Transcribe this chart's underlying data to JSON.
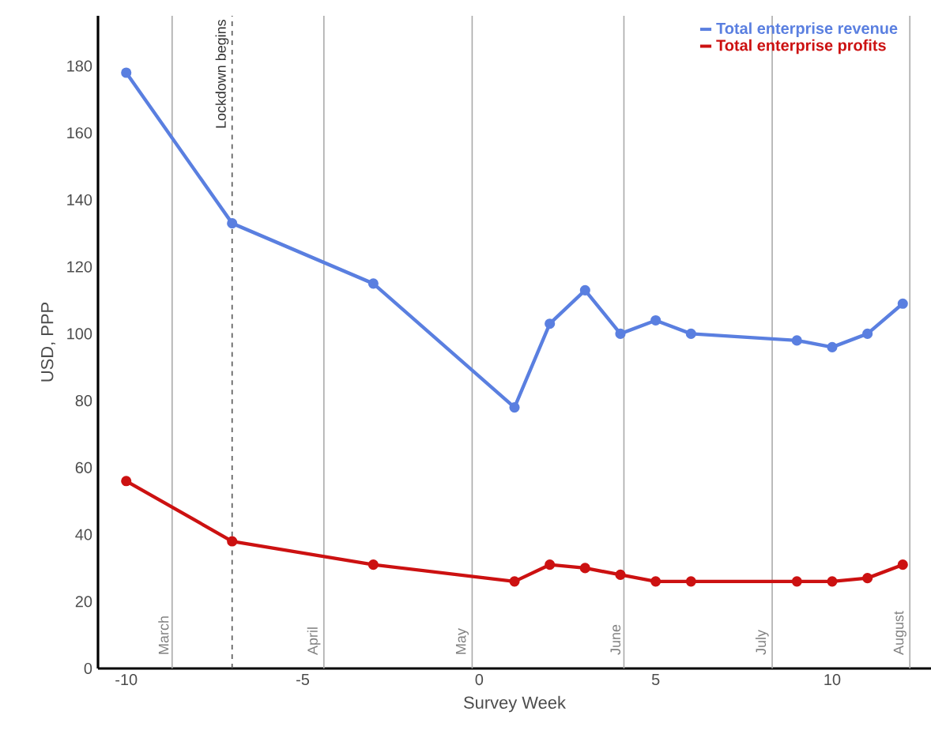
{
  "chart_data": {
    "type": "line",
    "xlabel": "Survey Week",
    "ylabel": "USD, PPP",
    "x": [
      -10,
      -7,
      -3,
      1,
      2,
      3,
      4,
      5,
      6,
      9,
      10,
      11,
      12
    ],
    "series": [
      {
        "name": "Total enterprise revenue",
        "color": "#5a7fe0",
        "values": [
          178,
          133,
          115,
          78,
          103,
          113,
          100,
          104,
          100,
          98,
          96,
          100,
          109
        ]
      },
      {
        "name": "Total enterprise profits",
        "color": "#cc1111",
        "values": [
          56,
          38,
          31,
          26,
          31,
          30,
          28,
          26,
          26,
          26,
          26,
          27,
          31
        ]
      }
    ],
    "xlim": [
      -10.8,
      12.8
    ],
    "xticks": [
      -10,
      -5,
      0,
      5,
      10
    ],
    "ylim": [
      0,
      195
    ],
    "yticks": [
      0,
      20,
      40,
      60,
      80,
      100,
      120,
      140,
      160,
      180
    ],
    "ref_lines": [
      {
        "axis": "x",
        "value": -8.7,
        "label": "March",
        "color": "#aaaaaa",
        "line_style": "solid"
      },
      {
        "axis": "x",
        "value": -7,
        "label": "Lockdown begins",
        "color": "#555555",
        "line_style": "dashed"
      },
      {
        "axis": "x",
        "value": -4.4,
        "label": "April",
        "color": "#aaaaaa",
        "line_style": "solid"
      },
      {
        "axis": "x",
        "value": -0.2,
        "label": "May",
        "color": "#aaaaaa",
        "line_style": "solid"
      },
      {
        "axis": "x",
        "value": 4.1,
        "label": "June",
        "color": "#aaaaaa",
        "line_style": "solid"
      },
      {
        "axis": "x",
        "value": 8.3,
        "label": "July",
        "color": "#aaaaaa",
        "line_style": "solid"
      },
      {
        "axis": "x",
        "value": 12.2,
        "label": "August",
        "color": "#aaaaaa",
        "line_style": "solid"
      }
    ],
    "legend": "top right",
    "marker": "circle",
    "line_style": "solid",
    "grid": false
  }
}
